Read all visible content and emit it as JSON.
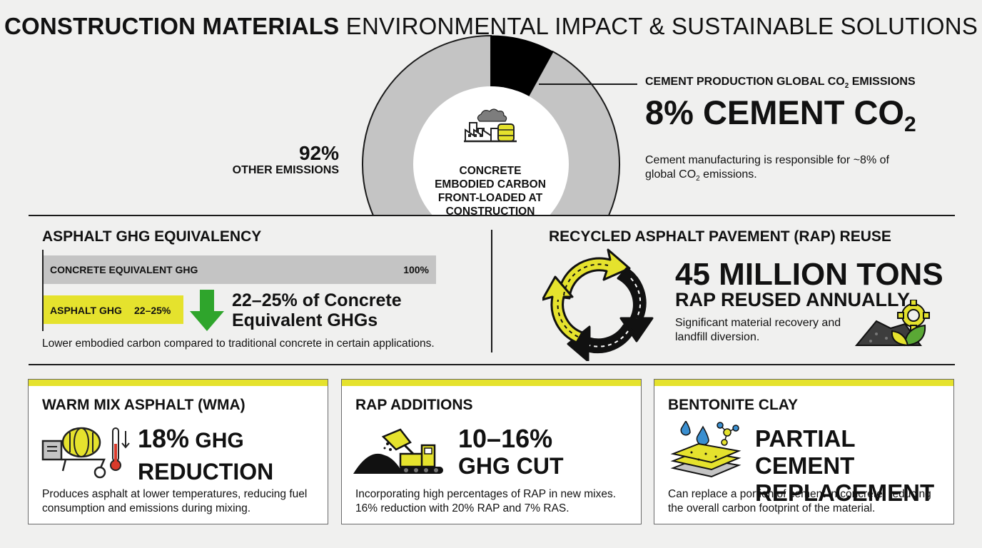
{
  "title": {
    "bold": "CONSTRUCTION MATERIALS",
    "light": "ENVIRONMENTAL IMPACT & SUSTAINABLE SOLUTIONS"
  },
  "donut": {
    "segments": [
      {
        "name": "Cement CO2",
        "value": 8,
        "color": "#000000"
      },
      {
        "name": "Other emissions",
        "value": 92,
        "color": "#c4c4c4"
      }
    ],
    "center_label": "CONCRETE EMBODIED CARBON FRONT-LOADED AT CONSTRUCTION",
    "other_pct": "92%",
    "other_label": "OTHER EMISSIONS"
  },
  "cement": {
    "kicker_main": "CEMENT PRODUCTION GLOBAL CO",
    "kicker_sub": "2",
    "kicker_end": " EMISSIONS",
    "big_main": "8% CEMENT CO",
    "big_sub": "2",
    "desc_1": "Cement manufacturing is responsible for ~8% of global CO",
    "desc_sub": "2",
    "desc_2": " emissions."
  },
  "asphalt": {
    "title": "ASPHALT GHG EQUIVALENCY",
    "concrete_label": "CONCRETE EQUIVALENT GHG",
    "concrete_value": "100%",
    "asphalt_label": "ASPHALT GHG",
    "asphalt_value": "22–25%",
    "asphalt_fraction": 0.25,
    "equiv_big": "22–25%",
    "equiv_rest": " of Concrete Equivalent GHGs",
    "note": "Lower embodied carbon compared to traditional concrete in certain applications."
  },
  "rap": {
    "title": "RECYCLED ASPHALT PAVEMENT (RAP) REUSE",
    "big": "45 MILLION TONS",
    "sub": "RAP REUSED ANNUALLY",
    "desc": "Significant material recovery and landfill diversion."
  },
  "cards": [
    {
      "title": "WARM MIX ASPHALT (WMA)",
      "stat_num": "18%",
      "stat_unit": " GHG",
      "stat_line2": "REDUCTION",
      "desc": "Produces asphalt at lower temperatures, reducing fuel consumption and emissions during mixing."
    },
    {
      "title": "RAP ADDITIONS",
      "stat_num": "10–16%",
      "stat_line2": "GHG CUT",
      "desc": "Incorporating high percentages of RAP in new mixes. 16% reduction with 20% RAP and 7% RAS."
    },
    {
      "title": "BENTONITE CLAY",
      "stat_line1": "PARTIAL CEMENT",
      "stat_line2": "REPLACEMENT",
      "desc": "Can replace a portion of cement in concrete, reducing the overall carbon footprint of the material."
    }
  ],
  "colors": {
    "accent_yellow": "#e5e22d",
    "arrow_green": "#2fa52c",
    "gray": "#c4c4c4",
    "background": "#f0f0ef"
  }
}
